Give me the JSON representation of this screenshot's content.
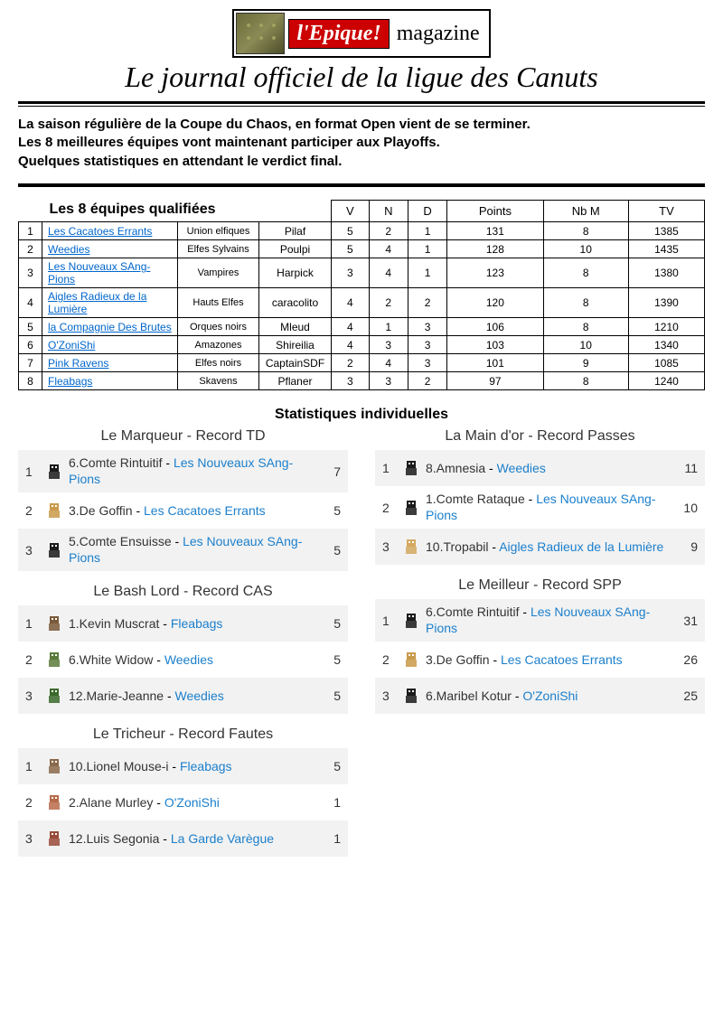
{
  "header": {
    "logo_red": "l'Epique!",
    "logo_black": "magazine",
    "subtitle": "Le journal officiel de la ligue des Canuts"
  },
  "intro": "La saison régulière de la Coupe du Chaos, en format Open vient de se terminer.\nLes 8 meilleures équipes vont maintenant participer aux Playoffs.\nQuelques statistiques en attendant le verdict final.",
  "qualified": {
    "title": "Les 8 équipes qualifiées",
    "columns": [
      "V",
      "N",
      "D",
      "Points",
      "Nb M",
      "TV"
    ],
    "rows": [
      {
        "rank": 1,
        "team": "Les Cacatoes Errants",
        "race": "Union elfiques",
        "coach": "Pilaf",
        "v": 5,
        "n": 2,
        "d": 1,
        "pts": 131,
        "nbm": 8,
        "tv": 1385
      },
      {
        "rank": 2,
        "team": "Weedies",
        "race": "Elfes Sylvains",
        "coach": "Poulpi",
        "v": 5,
        "n": 4,
        "d": 1,
        "pts": 128,
        "nbm": 10,
        "tv": 1435
      },
      {
        "rank": 3,
        "team": "Les Nouveaux SAng-Pions",
        "race": "Vampires",
        "coach": "Harpick",
        "v": 3,
        "n": 4,
        "d": 1,
        "pts": 123,
        "nbm": 8,
        "tv": 1380
      },
      {
        "rank": 4,
        "team": "Aigles Radieux de la Lumière",
        "race": "Hauts Elfes",
        "coach": "caracolito",
        "v": 4,
        "n": 2,
        "d": 2,
        "pts": 120,
        "nbm": 8,
        "tv": 1390
      },
      {
        "rank": 5,
        "team": "la Compagnie Des Brutes",
        "race": "Orques noirs",
        "coach": "Mleud",
        "v": 4,
        "n": 1,
        "d": 3,
        "pts": 106,
        "nbm": 8,
        "tv": 1210
      },
      {
        "rank": 6,
        "team": "O'ZoniShi",
        "race": "Amazones",
        "coach": "Shireilia",
        "v": 4,
        "n": 3,
        "d": 3,
        "pts": 103,
        "nbm": 10,
        "tv": 1340
      },
      {
        "rank": 7,
        "team": "Pink Ravens",
        "race": "Elfes noirs",
        "coach": "CaptainSDF",
        "v": 2,
        "n": 4,
        "d": 3,
        "pts": 101,
        "nbm": 9,
        "tv": 1085
      },
      {
        "rank": 8,
        "team": "Fleabags",
        "race": "Skavens",
        "coach": "Pflaner",
        "v": 3,
        "n": 3,
        "d": 2,
        "pts": 97,
        "nbm": 8,
        "tv": 1240
      }
    ]
  },
  "indiv_title": "Statistiques individuelles",
  "stat_blocks_left": [
    {
      "title": "Le Marqueur - Record TD",
      "rows": [
        {
          "pos": 1,
          "icon": "dark",
          "num": "6",
          "player": "Comte Rintuitif",
          "team": "Les Nouveaux SAng-Pions",
          "val": 7
        },
        {
          "pos": 2,
          "icon": "elf",
          "num": "3",
          "player": "De Goffin",
          "team": "Les Cacatoes Errants",
          "val": 5
        },
        {
          "pos": 3,
          "icon": "dark",
          "num": "5",
          "player": "Comte Ensuisse",
          "team": "Les Nouveaux SAng-Pions",
          "val": 5
        }
      ]
    },
    {
      "title": "Le Bash Lord - Record CAS",
      "rows": [
        {
          "pos": 1,
          "icon": "rat",
          "num": "1",
          "player": "Kevin Muscrat",
          "team": "Fleabags",
          "val": 5
        },
        {
          "pos": 2,
          "icon": "tree",
          "num": "6",
          "player": "White Widow",
          "team": "Weedies",
          "val": 5
        },
        {
          "pos": 3,
          "icon": "tree2",
          "num": "12",
          "player": "Marie-Jeanne",
          "team": "Weedies",
          "val": 5
        }
      ]
    },
    {
      "title": "Le Tricheur - Record Fautes",
      "rows": [
        {
          "pos": 1,
          "icon": "rat2",
          "num": "10",
          "player": "Lionel Mouse-i",
          "team": "Fleabags",
          "val": 5
        },
        {
          "pos": 2,
          "icon": "ama",
          "num": "2",
          "player": "Alane Murley",
          "team": "O'ZoniShi",
          "val": 1
        },
        {
          "pos": 3,
          "icon": "hum",
          "num": "12",
          "player": "Luis Segonia",
          "team": "La Garde Varègue",
          "val": 1
        }
      ]
    }
  ],
  "stat_blocks_right": [
    {
      "title": "La Main d'or - Record Passes",
      "rows": [
        {
          "pos": 1,
          "icon": "dark",
          "num": "8",
          "player": "Amnesia",
          "team": "Weedies",
          "val": 11
        },
        {
          "pos": 2,
          "icon": "dark",
          "num": "1",
          "player": "Comte Rataque",
          "team": "Les Nouveaux SAng-Pions",
          "val": 10
        },
        {
          "pos": 3,
          "icon": "elf2",
          "num": "10",
          "player": "Tropabil",
          "team": "Aigles Radieux de la Lumière",
          "val": 9
        }
      ]
    },
    {
      "title": "Le Meilleur - Record SPP",
      "rows": [
        {
          "pos": 1,
          "icon": "dark",
          "num": "6",
          "player": "Comte Rintuitif",
          "team": "Les Nouveaux SAng-Pions",
          "val": 31
        },
        {
          "pos": 2,
          "icon": "elf",
          "num": "3",
          "player": "De Goffin",
          "team": "Les Cacatoes Errants",
          "val": 26
        },
        {
          "pos": 3,
          "icon": "dark",
          "num": "6",
          "player": "Maribel Kotur",
          "team": "O'ZoniShi",
          "val": 25
        }
      ]
    }
  ],
  "colors": {
    "link": "#1b7fcc",
    "row_alt": "#f2f2f2",
    "logo_red": "#cc0000"
  },
  "icon_palette": {
    "dark": "#1a1a1a",
    "elf": "#c99a4a",
    "elf2": "#d4a860",
    "rat": "#7a5a3a",
    "rat2": "#8a6a4a",
    "tree": "#5a7a3a",
    "tree2": "#3a6a2a",
    "ama": "#b86a4a",
    "hum": "#9a4a3a"
  }
}
